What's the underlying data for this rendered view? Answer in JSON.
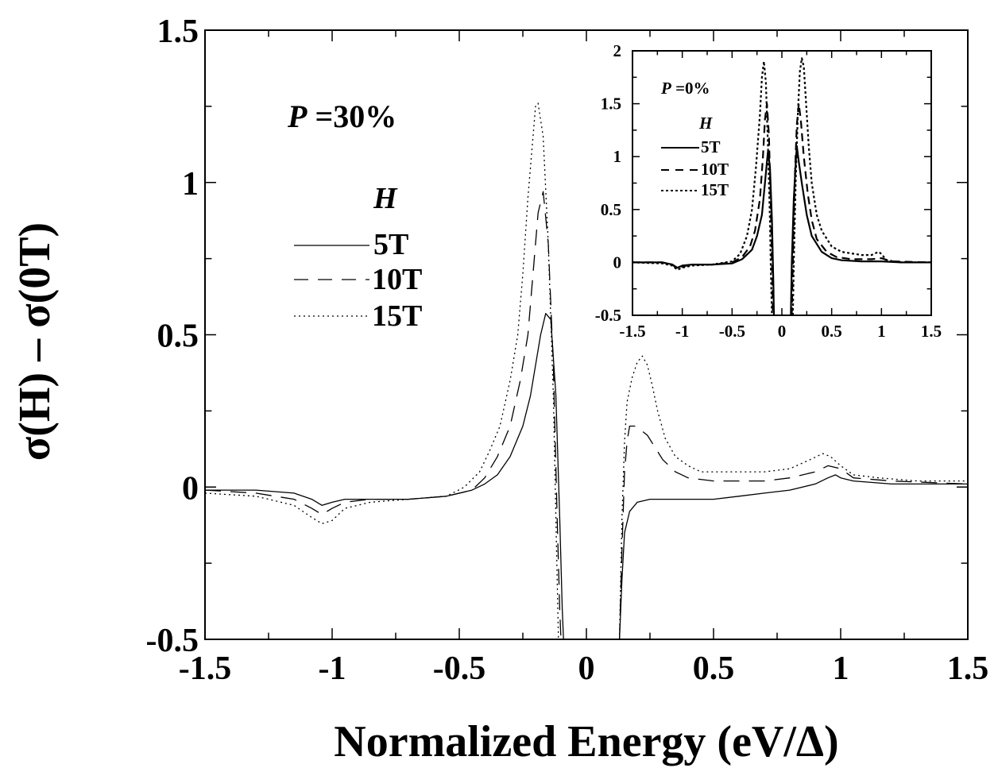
{
  "chart_data": [
    {
      "type": "line",
      "xlabel": "Normalized Energy (eV/Δ)",
      "ylabel": "σ(H) –  σ(0T)",
      "xlim": [
        -1.5,
        1.5
      ],
      "ylim": [
        -0.5,
        1.5
      ],
      "xticks": [
        -1.5,
        -1,
        -0.5,
        0,
        0.5,
        1,
        1.5
      ],
      "xtick_labels": [
        "-1.5",
        "-1",
        "-0.5",
        "0",
        "0.5",
        "1",
        "1.5"
      ],
      "yticks": [
        -0.5,
        0,
        0.5,
        1,
        1.5
      ],
      "ytick_labels": [
        "-0.5",
        "0",
        "0.5",
        "1",
        "1.5"
      ],
      "grid": false,
      "annotation": {
        "var": "P",
        "text": " =30%"
      },
      "legend": {
        "title": "H",
        "placement": "upper-left"
      },
      "series": [
        {
          "name": "5T",
          "style": "solid",
          "x": [
            -1.5,
            -1.3,
            -1.15,
            -1.08,
            -1.04,
            -1.0,
            -0.95,
            -0.85,
            -0.7,
            -0.55,
            -0.45,
            -0.4,
            -0.35,
            -0.3,
            -0.25,
            -0.22,
            -0.2,
            -0.18,
            -0.16,
            -0.14,
            -0.12,
            -0.105,
            -0.095,
            -0.09
          ],
          "y": [
            -0.01,
            -0.01,
            -0.02,
            -0.04,
            -0.06,
            -0.05,
            -0.04,
            -0.04,
            -0.04,
            -0.03,
            -0.01,
            0.01,
            0.04,
            0.1,
            0.2,
            0.3,
            0.4,
            0.5,
            0.57,
            0.55,
            0.3,
            -0.1,
            -0.4,
            -0.5
          ]
        },
        {
          "name": "5T",
          "style": "solid",
          "x": [
            0.13,
            0.14,
            0.15,
            0.17,
            0.2,
            0.25,
            0.3,
            0.4,
            0.5,
            0.6,
            0.7,
            0.8,
            0.9,
            0.95,
            0.98,
            1.0,
            1.05,
            1.2,
            1.5
          ],
          "y": [
            -0.5,
            -0.3,
            -0.15,
            -0.08,
            -0.05,
            -0.04,
            -0.04,
            -0.04,
            -0.04,
            -0.03,
            -0.02,
            -0.01,
            0.01,
            0.03,
            0.04,
            0.03,
            0.02,
            0.01,
            0.01
          ]
        },
        {
          "name": "10T",
          "style": "dashed",
          "x": [
            -1.5,
            -1.3,
            -1.15,
            -1.08,
            -1.04,
            -1.0,
            -0.95,
            -0.85,
            -0.7,
            -0.55,
            -0.45,
            -0.4,
            -0.35,
            -0.3,
            -0.26,
            -0.23,
            -0.21,
            -0.19,
            -0.17,
            -0.15,
            -0.13,
            -0.115,
            -0.105,
            -0.1
          ],
          "y": [
            -0.01,
            -0.02,
            -0.04,
            -0.07,
            -0.09,
            -0.07,
            -0.05,
            -0.04,
            -0.04,
            -0.03,
            -0.01,
            0.03,
            0.1,
            0.2,
            0.35,
            0.5,
            0.7,
            0.9,
            0.97,
            0.8,
            0.4,
            -0.1,
            -0.4,
            -0.5
          ]
        },
        {
          "name": "10T",
          "style": "dashed",
          "x": [
            0.13,
            0.14,
            0.15,
            0.16,
            0.17,
            0.19,
            0.21,
            0.24,
            0.27,
            0.3,
            0.35,
            0.4,
            0.5,
            0.6,
            0.7,
            0.8,
            0.9,
            0.95,
            1.0,
            1.05,
            1.2,
            1.5
          ],
          "y": [
            -0.5,
            -0.2,
            0.05,
            0.15,
            0.2,
            0.2,
            0.19,
            0.17,
            0.13,
            0.09,
            0.05,
            0.03,
            0.02,
            0.02,
            0.02,
            0.03,
            0.05,
            0.07,
            0.06,
            0.03,
            0.02,
            0.01
          ]
        },
        {
          "name": "15T",
          "style": "dotted",
          "x": [
            -1.5,
            -1.3,
            -1.15,
            -1.08,
            -1.04,
            -1.0,
            -0.95,
            -0.85,
            -0.7,
            -0.55,
            -0.48,
            -0.42,
            -0.38,
            -0.34,
            -0.3,
            -0.27,
            -0.25,
            -0.23,
            -0.21,
            -0.2,
            -0.19,
            -0.17,
            -0.15,
            -0.13,
            -0.12,
            -0.11
          ],
          "y": [
            -0.02,
            -0.03,
            -0.06,
            -0.1,
            -0.12,
            -0.11,
            -0.07,
            -0.05,
            -0.04,
            -0.03,
            0.0,
            0.05,
            0.12,
            0.2,
            0.35,
            0.5,
            0.7,
            0.95,
            1.15,
            1.25,
            1.26,
            1.15,
            0.8,
            0.3,
            -0.1,
            -0.5
          ]
        },
        {
          "name": "15T",
          "style": "dotted",
          "x": [
            0.13,
            0.14,
            0.15,
            0.16,
            0.18,
            0.2,
            0.22,
            0.24,
            0.26,
            0.28,
            0.31,
            0.35,
            0.4,
            0.45,
            0.5,
            0.6,
            0.7,
            0.8,
            0.88,
            0.93,
            0.96,
            1.0,
            1.05,
            1.15,
            1.3,
            1.5
          ],
          "y": [
            -0.5,
            -0.1,
            0.15,
            0.28,
            0.36,
            0.41,
            0.43,
            0.4,
            0.33,
            0.25,
            0.16,
            0.1,
            0.07,
            0.05,
            0.05,
            0.05,
            0.05,
            0.06,
            0.09,
            0.11,
            0.1,
            0.07,
            0.04,
            0.03,
            0.02,
            0.02
          ]
        }
      ]
    },
    {
      "type": "line",
      "role": "inset",
      "xlim": [
        -1.5,
        1.5
      ],
      "ylim": [
        -0.5,
        2
      ],
      "xticks": [
        -1.5,
        -1,
        -0.5,
        0,
        0.5,
        1,
        1.5
      ],
      "xtick_labels": [
        "-1.5",
        "-1",
        "-0.5",
        "0",
        "0.5",
        "1",
        "1.5"
      ],
      "yticks": [
        -0.5,
        0,
        0.5,
        1,
        1.5,
        2
      ],
      "ytick_labels": [
        "-0.5",
        "0",
        "0.5",
        "1",
        "1.5",
        "2"
      ],
      "grid": false,
      "annotation": {
        "var": "P",
        "text": " =0%"
      },
      "legend": {
        "title": "H",
        "placement": "upper-left"
      },
      "series": [
        {
          "name": "5T",
          "style": "solid",
          "x": [
            -1.5,
            -1.2,
            -1.1,
            -1.05,
            -1.0,
            -0.9,
            -0.7,
            -0.5,
            -0.4,
            -0.3,
            -0.25,
            -0.2,
            -0.17,
            -0.15,
            -0.14,
            -0.12,
            -0.1,
            -0.085,
            -0.08
          ],
          "y": [
            0.0,
            0.0,
            -0.02,
            -0.05,
            -0.03,
            -0.02,
            -0.02,
            -0.01,
            0.03,
            0.12,
            0.25,
            0.45,
            0.75,
            0.95,
            1.05,
            0.9,
            0.4,
            -0.2,
            -0.5
          ]
        },
        {
          "name": "5T",
          "style": "solid",
          "x": [
            0.09,
            0.1,
            0.12,
            0.14,
            0.15,
            0.17,
            0.2,
            0.25,
            0.3,
            0.4,
            0.5,
            0.6,
            0.8,
            1.0,
            1.2,
            1.5
          ],
          "y": [
            -0.5,
            0.0,
            0.6,
            0.95,
            1.1,
            0.95,
            0.75,
            0.45,
            0.25,
            0.1,
            0.04,
            0.02,
            0.01,
            0.01,
            0.0,
            0.0
          ]
        },
        {
          "name": "10T",
          "style": "dashed",
          "x": [
            -1.5,
            -1.2,
            -1.1,
            -1.05,
            -1.0,
            -0.9,
            -0.7,
            -0.5,
            -0.4,
            -0.32,
            -0.27,
            -0.22,
            -0.19,
            -0.17,
            -0.15,
            -0.13,
            -0.11,
            -0.095,
            -0.09
          ],
          "y": [
            0.0,
            0.0,
            -0.02,
            -0.06,
            -0.04,
            -0.02,
            -0.02,
            0.0,
            0.05,
            0.15,
            0.3,
            0.6,
            1.0,
            1.35,
            1.5,
            1.2,
            0.5,
            -0.2,
            -0.5
          ]
        },
        {
          "name": "10T",
          "style": "dashed",
          "x": [
            0.1,
            0.11,
            0.13,
            0.15,
            0.17,
            0.19,
            0.22,
            0.26,
            0.3,
            0.35,
            0.45,
            0.55,
            0.7,
            0.9,
            1.0,
            1.1,
            1.5
          ],
          "y": [
            -0.5,
            0.0,
            0.8,
            1.3,
            1.5,
            1.35,
            1.0,
            0.65,
            0.4,
            0.22,
            0.1,
            0.05,
            0.03,
            0.03,
            0.04,
            0.01,
            0.0
          ]
        },
        {
          "name": "15T",
          "style": "dotted",
          "x": [
            -1.5,
            -1.2,
            -1.1,
            -1.05,
            -1.0,
            -0.9,
            -0.7,
            -0.5,
            -0.42,
            -0.35,
            -0.3,
            -0.26,
            -0.22,
            -0.2,
            -0.18,
            -0.16,
            -0.14,
            -0.12,
            -0.11,
            -0.1
          ],
          "y": [
            0.0,
            -0.01,
            -0.03,
            -0.07,
            -0.05,
            -0.03,
            -0.02,
            0.01,
            0.08,
            0.25,
            0.5,
            0.9,
            1.4,
            1.75,
            1.9,
            1.7,
            1.1,
            0.4,
            -0.1,
            -0.5
          ]
        },
        {
          "name": "15T",
          "style": "dotted",
          "x": [
            0.11,
            0.12,
            0.14,
            0.16,
            0.18,
            0.2,
            0.22,
            0.24,
            0.27,
            0.3,
            0.35,
            0.4,
            0.5,
            0.6,
            0.8,
            0.9,
            0.97,
            1.0,
            1.05,
            1.2,
            1.5
          ],
          "y": [
            -0.5,
            0.0,
            0.8,
            1.4,
            1.8,
            1.93,
            1.85,
            1.55,
            1.1,
            0.75,
            0.45,
            0.3,
            0.15,
            0.1,
            0.07,
            0.07,
            0.1,
            0.08,
            0.02,
            0.0,
            0.0
          ]
        }
      ]
    }
  ]
}
